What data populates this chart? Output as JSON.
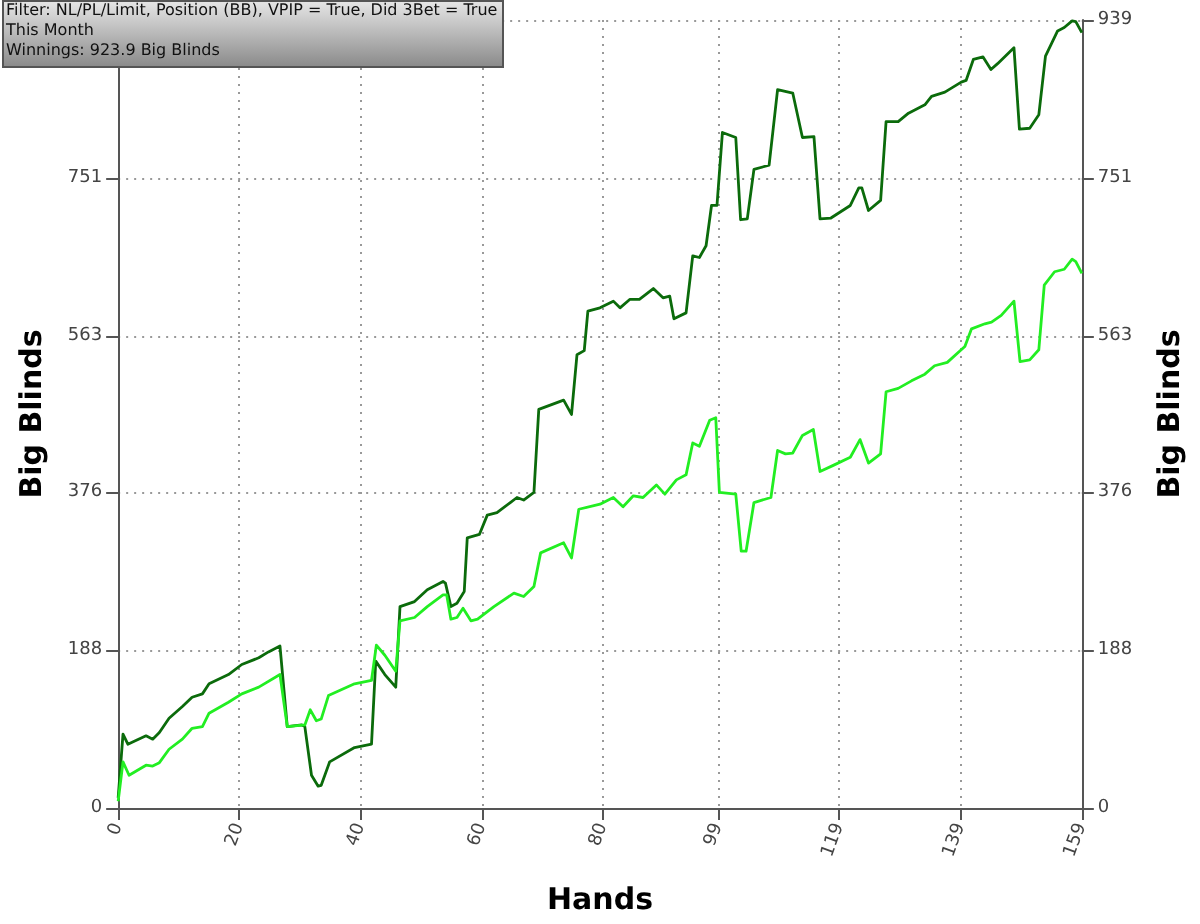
{
  "chart_data": {
    "type": "line",
    "xlabel": "Hands",
    "ylabel": "Big Blinds",
    "y2label": "Big Blinds",
    "annotations": [
      "Filter: NL/PL/Limit, Position (BB), VPIP = True, Did 3Bet = True",
      "This Month",
      "Winnings: 923.9 Big Blinds"
    ],
    "xlim": [
      0,
      159
    ],
    "xticks": [
      0,
      20,
      40,
      60,
      80,
      99,
      119,
      139,
      159
    ],
    "ylim": [
      0,
      939
    ],
    "yticks": [
      0,
      188,
      376,
      563,
      751,
      {
        "value": 939,
        "label": null
      }
    ],
    "y2lim": [
      0,
      939
    ],
    "y2ticks": [
      0,
      188,
      376,
      563,
      751,
      939
    ],
    "grid": true,
    "series": [
      {
        "color": "#0b6b0b",
        "x": [
          0,
          0.8,
          1.6,
          4.6,
          5.7,
          6.8,
          8.4,
          10.6,
          12.2,
          13.9,
          15,
          18.2,
          20.4,
          23.2,
          24.8,
          26.7,
          27.9,
          30.3,
          30.8,
          31.9,
          33,
          33.5,
          34.9,
          39,
          41.8,
          42.5,
          44,
          45.8,
          46.5,
          48.9,
          51,
          53.6,
          54,
          54.9,
          55.9,
          57.1,
          57.6,
          59.6,
          60.9,
          62.5,
          64.7,
          65.8,
          66.9,
          68.6,
          69.4,
          73.5,
          74.8,
          75.7,
          76.9,
          77.5,
          79.5,
          81.7,
          82.8,
          84.4,
          86,
          88.3,
          89.9,
          91,
          91.7,
          93.7,
          94.8,
          95.9,
          97,
          97.9,
          98.8,
          99.7,
          101.9,
          102.7,
          103.8,
          104.9,
          107.4,
          108.8,
          111.3,
          112.9,
          114.8,
          115.8,
          117.6,
          120.8,
          122.2,
          122.7,
          123.8,
          125.8,
          126.7,
          128.7,
          130.4,
          133.1,
          134.2,
          136.4,
          139.1,
          139.9,
          141.1,
          142.7,
          144,
          145.1,
          147.8,
          148.7,
          150.4,
          151.9,
          153,
          155,
          156.1,
          157.4,
          158,
          159
        ],
        "values": [
          12,
          88,
          76,
          86,
          82,
          90,
          107,
          121,
          132,
          136,
          148,
          159,
          171,
          179,
          186,
          193,
          97,
          99,
          97,
          39,
          26,
          27,
          55,
          72,
          76,
          175,
          159,
          144,
          240,
          246,
          260,
          270,
          268,
          240,
          244,
          258,
          322,
          326,
          349,
          352,
          364,
          370,
          367,
          376,
          475,
          486,
          469,
          540,
          545,
          592,
          596,
          604,
          596,
          606,
          606,
          619,
          608,
          610,
          583,
          590,
          658,
          656,
          670,
          718,
          718,
          805,
          799,
          701,
          702,
          761,
          766,
          856,
          852,
          799,
          800,
          702,
          703,
          718,
          739,
          739,
          712,
          724,
          818,
          818,
          828,
          838,
          848,
          853,
          865,
          867,
          892,
          895,
          880,
          887,
          906,
          809,
          810,
          826,
          896,
          926,
          930,
          938,
          937,
          924
        ]
      },
      {
        "color": "#22ee22",
        "x": [
          0,
          0.8,
          1.8,
          4.6,
          5.7,
          6.8,
          8.4,
          10.6,
          12.2,
          13.9,
          15,
          18.2,
          20.4,
          23.2,
          26.7,
          27.9,
          30.8,
          31.7,
          32.7,
          33.5,
          34.7,
          39,
          41.8,
          42.6,
          44,
          45.8,
          46.5,
          48.9,
          51,
          53.6,
          54.2,
          54.9,
          55.9,
          56.9,
          58.2,
          59.3,
          62,
          65.3,
          66.9,
          68.6,
          69.7,
          73.5,
          74.8,
          76,
          79.5,
          81.7,
          83.3,
          85,
          86.6,
          88.8,
          90.2,
          92.1,
          93.7,
          94.8,
          95.9,
          97.6,
          98.6,
          99.2,
          101.9,
          102.8,
          103.6,
          104.9,
          107.7,
          108.8,
          110.1,
          111.3,
          112.9,
          114.7,
          115.8,
          117.9,
          120.8,
          122.4,
          123.8,
          125.8,
          126.7,
          128.7,
          130.9,
          133.1,
          134.7,
          136.8,
          139.1,
          139.7,
          140.8,
          143,
          144.1,
          145.7,
          147.8,
          148.8,
          150.4,
          151.9,
          152.8,
          154.5,
          156.1,
          157.4,
          158,
          159
        ],
        "values": [
          8,
          55,
          39,
          51,
          50,
          54,
          70,
          82,
          95,
          97,
          113,
          126,
          136,
          144,
          159,
          97,
          99,
          117,
          104,
          106,
          134,
          148,
          152,
          194,
          182,
          163,
          223,
          227,
          240,
          254,
          254,
          225,
          227,
          238,
          223,
          225,
          240,
          256,
          252,
          264,
          304,
          316,
          298,
          356,
          362,
          370,
          359,
          372,
          370,
          385,
          374,
          391,
          397,
          435,
          431,
          462,
          465,
          376,
          374,
          306,
          306,
          364,
          370,
          426,
          422,
          423,
          444,
          451,
          401,
          408,
          418,
          439,
          411,
          422,
          496,
          500,
          509,
          517,
          527,
          531,
          546,
          550,
          571,
          577,
          579,
          587,
          604,
          532,
          534,
          546,
          623,
          639,
          642,
          654,
          651,
          637
        ]
      }
    ]
  }
}
